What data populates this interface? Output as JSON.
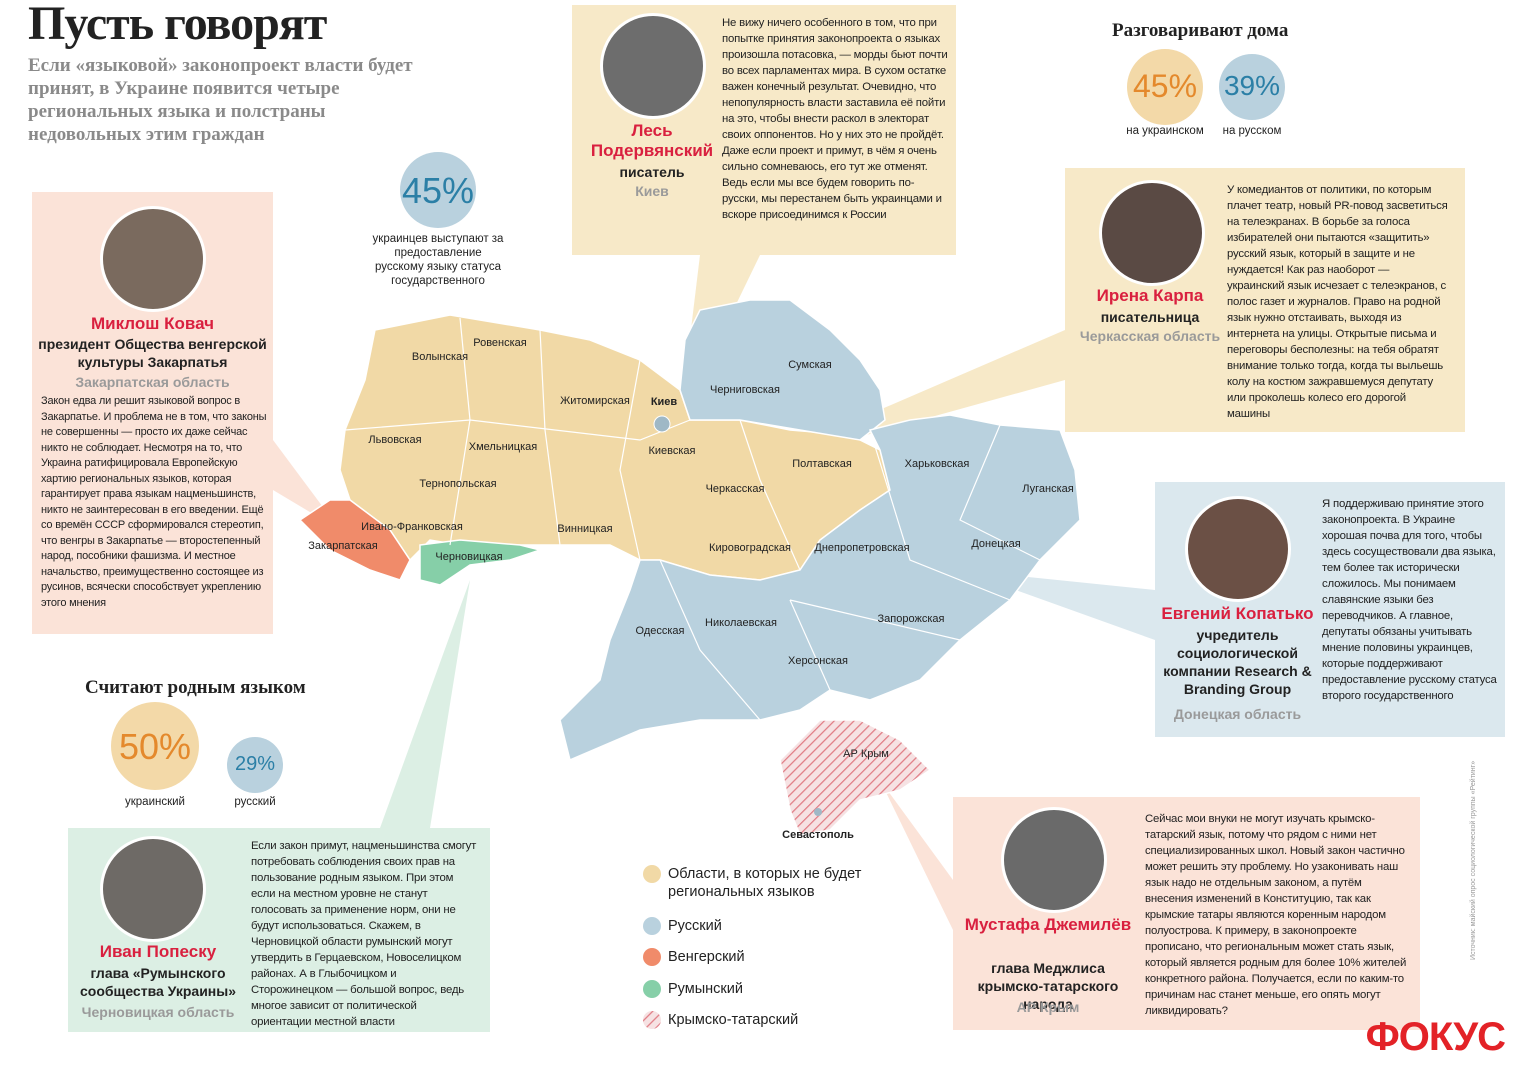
{
  "header": {
    "title": "Пусть говорят",
    "subtitle": "Если «языковой» законопроект власти будет принят, в Украине появится четыре региональных языка и полстраны недовольных этим граждан"
  },
  "support_stat": {
    "value": "45%",
    "label": "украинцев выступают за предоставление русскому языку статуса государственного"
  },
  "at_home": {
    "title": "Разговаривают дома",
    "items": [
      {
        "value": "45%",
        "label": "на украинском"
      },
      {
        "value": "39%",
        "label": "на русском"
      }
    ]
  },
  "native": {
    "title": "Считают родным языком",
    "items": [
      {
        "value": "50%",
        "label": "украинский"
      },
      {
        "value": "29%",
        "label": "русский"
      }
    ]
  },
  "people": [
    {
      "name": "Лесь Подервянский",
      "role": "писатель",
      "place": "Киев",
      "quote": "Не вижу ничего особенного в том, что при попытке принятия законопроекта о языках произошла потасовка, — морды бьют почти во всех парламентах мира. В сухом остатке важен конечный результат. Очевидно, что непопулярность власти заставила её пойти на это, чтобы внести раскол в электорат своих оппонентов. Но у них это не пройдёт. Даже если проект и примут, в чём я очень сильно сомневаюсь, его тут же отменят. Ведь если мы все будем говорить по-русски, мы перестанем быть украинцами и вскоре присоединимся к России"
    },
    {
      "name": "Миклош Ковач",
      "role": "президент Общества венгерской культуры Закарпатья",
      "place": "Закарпатская область",
      "quote": "Закон едва ли решит языковой вопрос в Закарпатье. И проблема не в том, что законы не совершенны — просто их даже сейчас никто не соблюдает. Несмотря на то, что Украина ратифицировала Европейскую хартию региональных языков, которая гарантирует права языкам нацменьшинств, никто не заинтересован в его введении. Ещё со времён СССР сформировался стереотип, что венгры в Закарпатье — второстепенный народ, пособники фашизма. И местное начальство, преимущественно состоящее из русинов, всячески способствует укреплению этого мнения"
    },
    {
      "name": "Ирена Карпа",
      "role": "писательница",
      "place": "Черкасская область",
      "quote": "У комедиантов от политики, по которым плачет театр, новый PR-повод засветиться на телеэкранах. В борьбе за голоса избирателей они пытаются «защитить» русский язык, который в защите и не нуждается! Как раз наоборот — украинский язык исчезает с телеэкранов, с полос газет и журналов. Право на родной язык нужно отстаивать, выходя из интернета на улицы. Открытые письма и переговоры бесполезны: на тебя обратят внимание только тогда, когда ты выльешь колу на костюм зажравшемуся депутату или проколешь колесо его дорогой машины"
    },
    {
      "name": "Евгений Копатько",
      "role": "учредитель социологической компании Research & Branding Group",
      "place": "Донецкая область",
      "quote": "Я поддерживаю принятие этого законопроекта. В Украине хорошая почва для того, чтобы здесь сосуществовали два языка, тем более так исторически сложилось. Мы понимаем славянские языки без переводчиков. А главное, депутаты обязаны учитывать мнение половины украинцев, которые поддерживают предоставление русскому статуса второго государственного"
    },
    {
      "name": "Иван Попеску",
      "role": "глава «Румынского сообщества Украины»",
      "place": "Черновицкая область",
      "quote": "Если закон примут, нацменьшинства смогут потребовать соблюдения своих прав на пользование родным языком. При этом если на местном уровне не станут голосовать за применение норм, они не будут использоваться. Скажем, в Черновицкой области румынский могут утвердить в Герцаевском, Новоселицком районах. А в Глыбочицком и Сторожинецком — большой вопрос, ведь многое зависит от политической ориентации местной власти"
    },
    {
      "name": "Мустафа Джемилёв",
      "role": "глава Меджлиса крымско-татарского народа",
      "place": "АР Крым",
      "quote": "Сейчас мои внуки не могут изучать крымско-татарский язык, потому что рядом с ними нет специализированных школ. Новый закон частично может решить эту проблему. Но узаконивать наш язык надо не отдельным законом, а путём внесения изменений в Конституцию, так как крымские татары являются коренным народом полуострова. К примеру, в законопроекте прописано, что региональным может стать язык, который является родным для более 10% жителей конкретного района. Получается, если по каким-то причинам нас станет меньше, его опять могут ликвидировать?"
    }
  ],
  "map": {
    "regions": [
      "Волынская",
      "Ровенская",
      "Львовская",
      "Житомирская",
      "Киев",
      "Черниговская",
      "Сумская",
      "Хмельницкая",
      "Тернопольская",
      "Киевская",
      "Полтавская",
      "Харьковская",
      "Луганская",
      "Ивано-Франковская",
      "Закарпатская",
      "Черновицкая",
      "Винницкая",
      "Черкасская",
      "Кировоградская",
      "Днепропетровская",
      "Донецкая",
      "Одесская",
      "Николаевская",
      "Запорожская",
      "Херсонская",
      "АР Крым",
      "Севастополь"
    ]
  },
  "legend": [
    "Области, в которых не будет региональных языков",
    "Русский",
    "Венгерский",
    "Румынский",
    "Крымско-татарский"
  ],
  "logo": "ФОКУС",
  "source": "Источник: майский опрос социологической группы «Рейтинг»"
}
